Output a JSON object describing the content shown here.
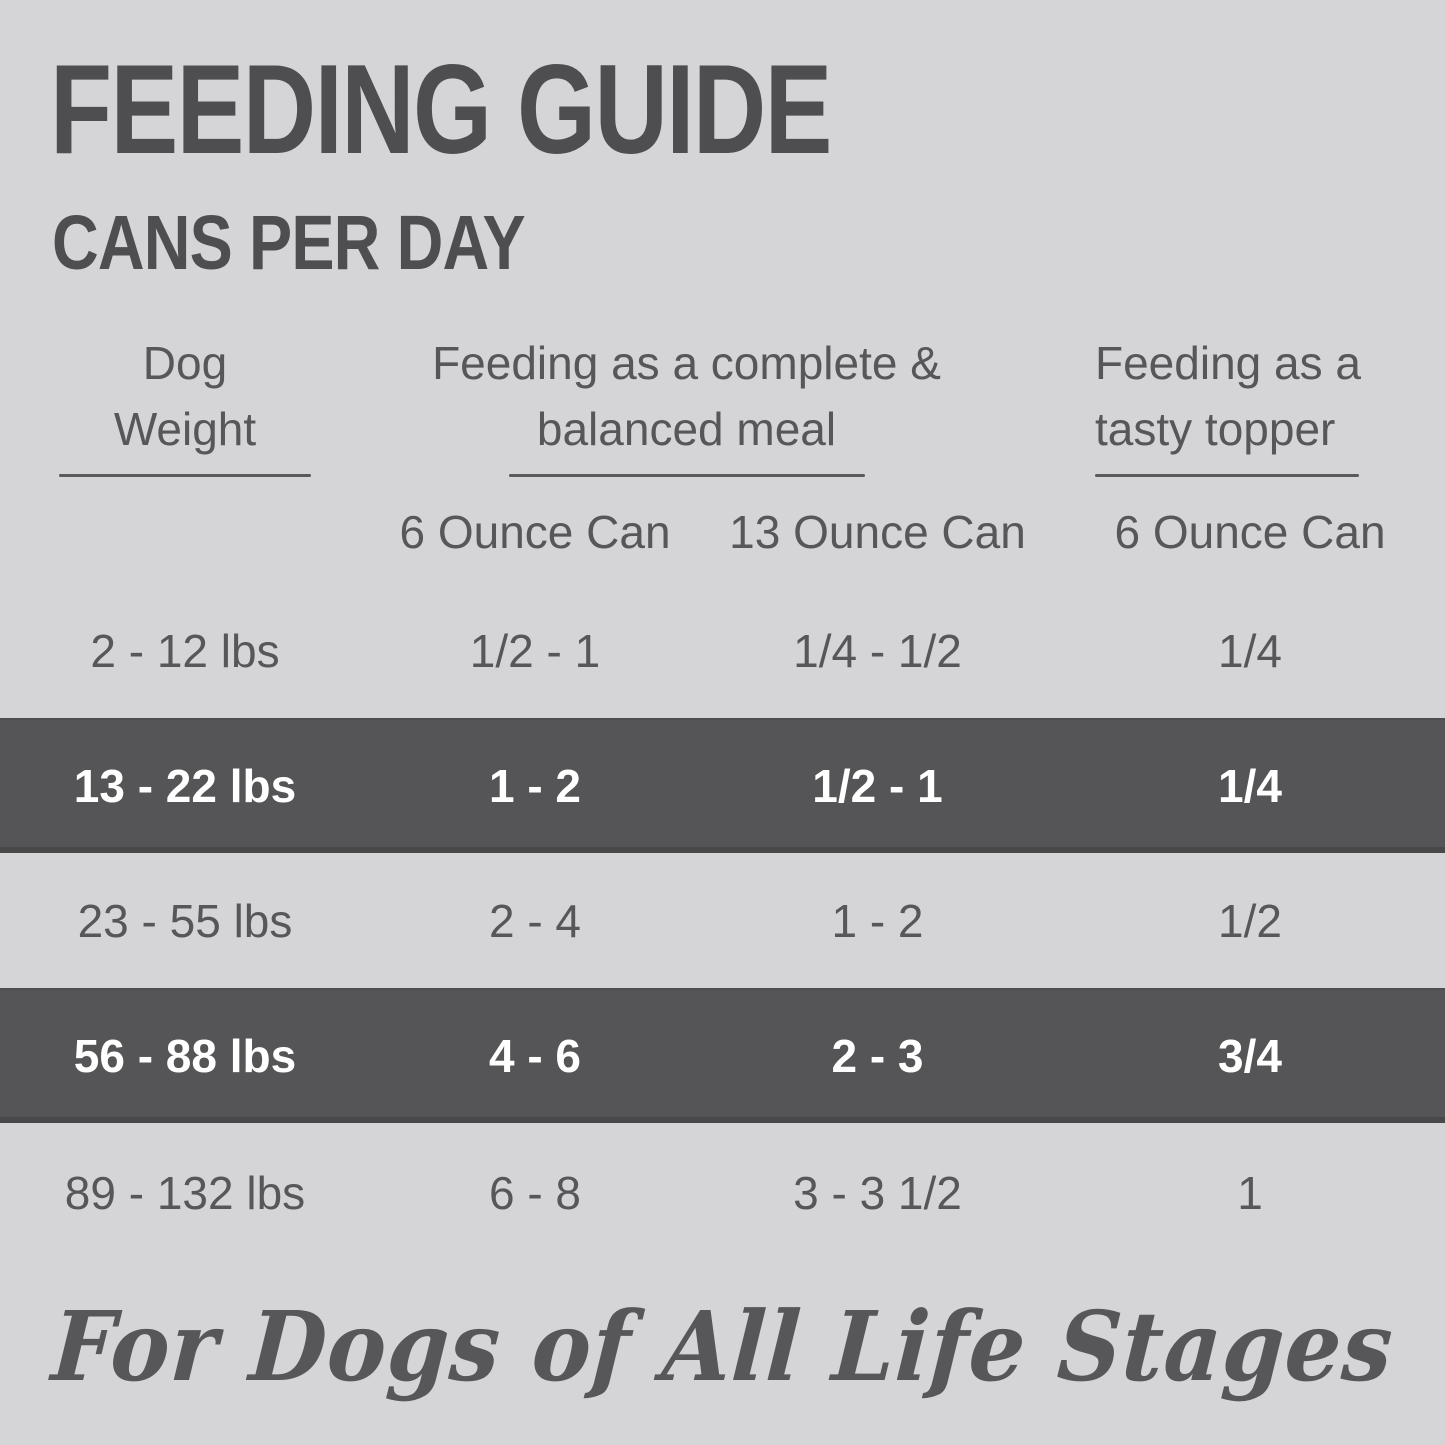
{
  "header": {
    "title": "FEEDING GUIDE",
    "subtitle": "CANS PER DAY"
  },
  "colors": {
    "background": "#d5d5d7",
    "band": "#555456",
    "ink": "#4e4e50",
    "text": "#57575a",
    "band_text": "#ffffff",
    "rule": "#5a5a5c"
  },
  "table": {
    "column_groups": [
      {
        "line1": "Dog",
        "line2": "Weight"
      },
      {
        "line1": "Feeding as a complete &",
        "line2": "balanced meal"
      },
      {
        "line1": "Feeding as a",
        "line2": "tasty topper"
      }
    ],
    "sub_headers": [
      "6 Ounce Can",
      "13 Ounce Can",
      "6 Ounce Can"
    ],
    "rows": [
      {
        "weight": "2 - 12 lbs",
        "six_oz": "1/2 - 1",
        "thirteen_oz": "1/4 - 1/2",
        "topper": "1/4",
        "highlight": false
      },
      {
        "weight": "13 - 22 lbs",
        "six_oz": "1 - 2",
        "thirteen_oz": "1/2 - 1",
        "topper": "1/4",
        "highlight": true
      },
      {
        "weight": "23 - 55 lbs",
        "six_oz": "2 - 4",
        "thirteen_oz": "1 - 2",
        "topper": "1/2",
        "highlight": false
      },
      {
        "weight": "56 - 88 lbs",
        "six_oz": "4 - 6",
        "thirteen_oz": "2 - 3",
        "topper": "3/4",
        "highlight": true
      },
      {
        "weight": "89 - 132 lbs",
        "six_oz": "6 - 8",
        "thirteen_oz": "3 - 3 1/2",
        "topper": "1",
        "highlight": false
      }
    ]
  },
  "footer": {
    "text": "For Dogs of All Life Stages"
  }
}
